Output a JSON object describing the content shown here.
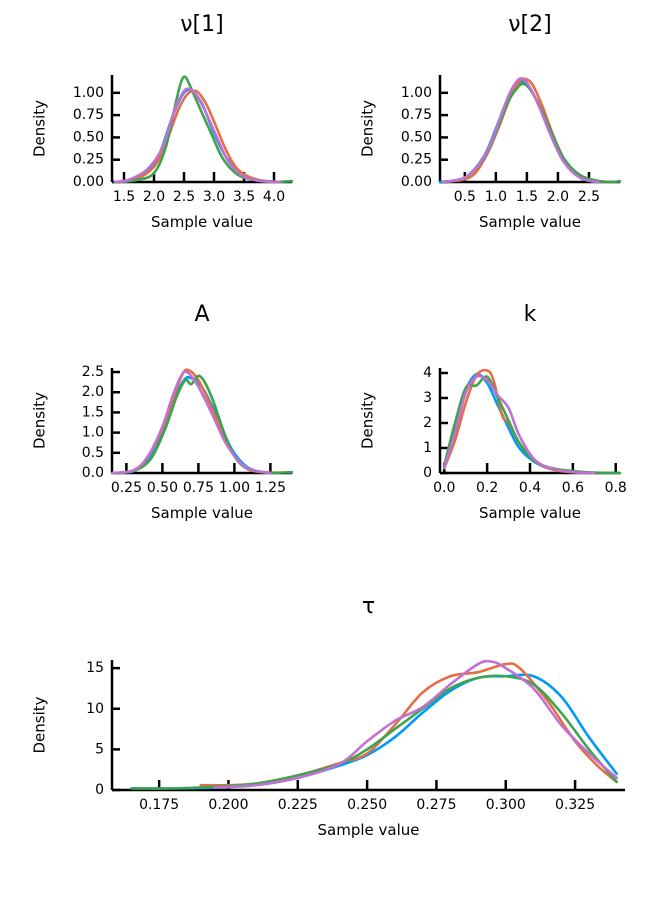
{
  "colors": {
    "chain1": "#009AFA",
    "chain2": "#E26F46",
    "chain3": "#3DA44E",
    "chain4": "#C271D2"
  },
  "chart_data": [
    {
      "type": "line",
      "title": "ν[1]",
      "xlabel": "Sample value",
      "ylabel": "Density",
      "xlim": [
        1.3,
        4.3
      ],
      "ylim": [
        0,
        1.2
      ],
      "xticks": [
        1.5,
        2.0,
        2.5,
        3.0,
        3.5,
        4.0
      ],
      "xtick_labels": [
        "1.5",
        "2.0",
        "2.5",
        "3.0",
        "3.5",
        "4.0"
      ],
      "yticks": [
        0,
        0.25,
        0.5,
        0.75,
        1.0
      ],
      "ytick_labels": [
        "0.00",
        "0.25",
        "0.50",
        "0.75",
        "1.00"
      ],
      "series": [
        {
          "color": "#009AFA",
          "x": [
            1.35,
            1.6,
            1.9,
            2.1,
            2.3,
            2.45,
            2.55,
            2.65,
            2.8,
            3.0,
            3.2,
            3.45,
            3.7,
            4.0
          ],
          "y": [
            0.0,
            0.02,
            0.12,
            0.33,
            0.72,
            0.95,
            1.03,
            1.01,
            0.88,
            0.55,
            0.28,
            0.1,
            0.03,
            0.0
          ]
        },
        {
          "color": "#E26F46",
          "x": [
            1.4,
            1.7,
            2.0,
            2.2,
            2.4,
            2.55,
            2.7,
            2.85,
            3.0,
            3.2,
            3.4,
            3.7,
            4.1
          ],
          "y": [
            0.0,
            0.03,
            0.17,
            0.44,
            0.8,
            0.98,
            1.02,
            0.9,
            0.68,
            0.36,
            0.14,
            0.03,
            0.0
          ]
        },
        {
          "color": "#3DA44E",
          "x": [
            1.35,
            1.7,
            2.0,
            2.2,
            2.35,
            2.45,
            2.52,
            2.6,
            2.75,
            2.95,
            3.15,
            3.4,
            3.7,
            4.0,
            4.3
          ],
          "y": [
            0.0,
            0.02,
            0.1,
            0.4,
            0.85,
            1.12,
            1.18,
            1.08,
            0.85,
            0.55,
            0.26,
            0.08,
            0.02,
            0.0,
            0.01
          ]
        },
        {
          "color": "#C271D2",
          "x": [
            1.35,
            1.6,
            1.9,
            2.15,
            2.35,
            2.5,
            2.6,
            2.7,
            2.85,
            3.05,
            3.25,
            3.5,
            3.8,
            4.1
          ],
          "y": [
            0.0,
            0.03,
            0.15,
            0.4,
            0.82,
            1.02,
            1.04,
            0.98,
            0.8,
            0.5,
            0.22,
            0.06,
            0.01,
            0.0
          ]
        }
      ]
    },
    {
      "type": "line",
      "title": "ν[2]",
      "xlabel": "Sample value",
      "ylabel": "Density",
      "xlim": [
        0.1,
        3.0
      ],
      "ylim": [
        0,
        1.2
      ],
      "xticks": [
        0.5,
        1.0,
        1.5,
        2.0,
        2.5
      ],
      "xtick_labels": [
        "0.5",
        "1.0",
        "1.5",
        "2.0",
        "2.5"
      ],
      "yticks": [
        0,
        0.25,
        0.5,
        0.75,
        1.0
      ],
      "ytick_labels": [
        "0.00",
        "0.25",
        "0.50",
        "0.75",
        "1.00"
      ],
      "series": [
        {
          "color": "#009AFA",
          "x": [
            0.1,
            0.5,
            0.8,
            1.0,
            1.2,
            1.35,
            1.45,
            1.55,
            1.7,
            1.9,
            2.1,
            2.35,
            2.6
          ],
          "y": [
            0.0,
            0.05,
            0.28,
            0.6,
            0.95,
            1.1,
            1.12,
            1.05,
            0.85,
            0.5,
            0.22,
            0.05,
            0.0
          ]
        },
        {
          "color": "#E26F46",
          "x": [
            0.2,
            0.6,
            0.85,
            1.05,
            1.25,
            1.4,
            1.5,
            1.6,
            1.75,
            1.95,
            2.15,
            2.4,
            2.7
          ],
          "y": [
            0.0,
            0.06,
            0.3,
            0.62,
            0.98,
            1.14,
            1.15,
            1.08,
            0.85,
            0.48,
            0.2,
            0.04,
            0.0
          ]
        },
        {
          "color": "#3DA44E",
          "x": [
            0.15,
            0.5,
            0.8,
            1.0,
            1.2,
            1.35,
            1.45,
            1.55,
            1.7,
            1.9,
            2.1,
            2.35,
            2.6,
            2.85,
            3.0
          ],
          "y": [
            0.0,
            0.05,
            0.26,
            0.55,
            0.9,
            1.06,
            1.1,
            1.04,
            0.86,
            0.55,
            0.26,
            0.08,
            0.02,
            0.0,
            0.01
          ]
        },
        {
          "color": "#C271D2",
          "x": [
            0.15,
            0.5,
            0.8,
            1.0,
            1.2,
            1.35,
            1.45,
            1.55,
            1.7,
            1.9,
            2.1,
            2.35,
            2.65
          ],
          "y": [
            0.0,
            0.05,
            0.27,
            0.58,
            0.96,
            1.14,
            1.15,
            1.06,
            0.84,
            0.5,
            0.22,
            0.05,
            0.0
          ]
        }
      ]
    },
    {
      "type": "line",
      "title": "A",
      "xlabel": "Sample value",
      "ylabel": "Density",
      "xlim": [
        0.15,
        1.4
      ],
      "ylim": [
        0,
        2.6
      ],
      "xticks": [
        0.25,
        0.5,
        0.75,
        1.0,
        1.25
      ],
      "xtick_labels": [
        "0.25",
        "0.50",
        "0.75",
        "1.00",
        "1.25"
      ],
      "yticks": [
        0,
        0.5,
        1.0,
        1.5,
        2.0,
        2.5
      ],
      "ytick_labels": [
        "0.0",
        "0.5",
        "1.0",
        "1.5",
        "2.0",
        "2.5"
      ],
      "series": [
        {
          "color": "#009AFA",
          "x": [
            0.15,
            0.3,
            0.4,
            0.5,
            0.58,
            0.65,
            0.7,
            0.78,
            0.88,
            0.98,
            1.1,
            1.25
          ],
          "y": [
            0.0,
            0.05,
            0.35,
            1.05,
            1.8,
            2.3,
            2.35,
            2.1,
            1.4,
            0.6,
            0.12,
            0.0
          ]
        },
        {
          "color": "#E26F46",
          "x": [
            0.15,
            0.3,
            0.4,
            0.5,
            0.58,
            0.64,
            0.68,
            0.75,
            0.85,
            0.96,
            1.08,
            1.25
          ],
          "y": [
            0.0,
            0.06,
            0.4,
            1.1,
            1.9,
            2.45,
            2.55,
            2.3,
            1.55,
            0.65,
            0.12,
            0.0
          ]
        },
        {
          "color": "#3DA44E",
          "x": [
            0.15,
            0.3,
            0.42,
            0.52,
            0.6,
            0.66,
            0.7,
            0.76,
            0.84,
            0.95,
            1.05,
            1.2,
            1.4
          ],
          "y": [
            0.0,
            0.05,
            0.35,
            1.1,
            1.9,
            2.3,
            2.2,
            2.4,
            1.9,
            0.8,
            0.2,
            0.02,
            0.02
          ]
        },
        {
          "color": "#C271D2",
          "x": [
            0.15,
            0.3,
            0.4,
            0.5,
            0.57,
            0.63,
            0.67,
            0.74,
            0.84,
            0.95,
            1.08,
            1.25
          ],
          "y": [
            0.0,
            0.07,
            0.42,
            1.15,
            1.9,
            2.4,
            2.5,
            2.2,
            1.5,
            0.68,
            0.14,
            0.0
          ]
        }
      ]
    },
    {
      "type": "line",
      "title": "k",
      "xlabel": "Sample value",
      "ylabel": "Density",
      "xlim": [
        -0.02,
        0.82
      ],
      "ylim": [
        0,
        4.2
      ],
      "xticks": [
        0.0,
        0.2,
        0.4,
        0.6,
        0.8
      ],
      "xtick_labels": [
        "0.0",
        "0.2",
        "0.4",
        "0.6",
        "0.8"
      ],
      "yticks": [
        0,
        1,
        2,
        3,
        4
      ],
      "ytick_labels": [
        "0",
        "1",
        "2",
        "3",
        "4"
      ],
      "series": [
        {
          "color": "#009AFA",
          "x": [
            0.0,
            0.05,
            0.1,
            0.15,
            0.2,
            0.25,
            0.3,
            0.35,
            0.42,
            0.5,
            0.6,
            0.7
          ],
          "y": [
            0.2,
            1.8,
            3.3,
            3.95,
            3.6,
            2.7,
            1.8,
            1.0,
            0.45,
            0.15,
            0.03,
            0.0
          ]
        },
        {
          "color": "#E26F46",
          "x": [
            0.0,
            0.05,
            0.1,
            0.15,
            0.2,
            0.23,
            0.27,
            0.3,
            0.35,
            0.42,
            0.5,
            0.6,
            0.7
          ],
          "y": [
            0.2,
            1.3,
            2.8,
            3.9,
            4.1,
            3.7,
            2.3,
            2.0,
            1.2,
            0.5,
            0.15,
            0.03,
            0.0
          ]
        },
        {
          "color": "#3DA44E",
          "x": [
            0.0,
            0.05,
            0.1,
            0.15,
            0.2,
            0.25,
            0.3,
            0.35,
            0.42,
            0.5,
            0.6,
            0.7,
            0.82
          ],
          "y": [
            0.3,
            2.0,
            3.4,
            3.5,
            3.85,
            3.0,
            2.1,
            1.2,
            0.5,
            0.2,
            0.08,
            0.02,
            0.0
          ]
        },
        {
          "color": "#C271D2",
          "x": [
            0.0,
            0.05,
            0.1,
            0.15,
            0.2,
            0.25,
            0.3,
            0.35,
            0.42,
            0.5,
            0.6,
            0.7
          ],
          "y": [
            0.2,
            1.6,
            3.2,
            3.85,
            3.7,
            3.1,
            2.6,
            1.5,
            0.55,
            0.18,
            0.04,
            0.0
          ]
        }
      ]
    },
    {
      "type": "line",
      "title": "τ",
      "xlabel": "Sample value",
      "ylabel": "Density",
      "xlim": [
        0.158,
        0.343
      ],
      "ylim": [
        0,
        16
      ],
      "xticks": [
        0.175,
        0.2,
        0.225,
        0.25,
        0.275,
        0.3,
        0.325
      ],
      "xtick_labels": [
        "0.175",
        "0.200",
        "0.225",
        "0.250",
        "0.275",
        "0.300",
        "0.325"
      ],
      "yticks": [
        0,
        5,
        10,
        15
      ],
      "ytick_labels": [
        "0",
        "5",
        "10",
        "15"
      ],
      "series": [
        {
          "color": "#009AFA",
          "x": [
            0.165,
            0.18,
            0.195,
            0.21,
            0.225,
            0.24,
            0.25,
            0.26,
            0.27,
            0.28,
            0.29,
            0.3,
            0.31,
            0.32,
            0.33,
            0.34
          ],
          "y": [
            0.2,
            0.2,
            0.3,
            0.6,
            1.5,
            3.0,
            4.3,
            6.5,
            9.5,
            12.2,
            13.8,
            14.0,
            14.0,
            11.5,
            6.5,
            2.0
          ]
        },
        {
          "color": "#E26F46",
          "x": [
            0.19,
            0.2,
            0.21,
            0.225,
            0.24,
            0.25,
            0.26,
            0.27,
            0.28,
            0.29,
            0.3,
            0.305,
            0.315,
            0.325,
            0.333,
            0.34
          ],
          "y": [
            0.6,
            0.6,
            0.8,
            1.8,
            3.3,
            4.5,
            8.0,
            12.0,
            14.0,
            14.5,
            15.5,
            15.0,
            11.0,
            6.0,
            3.0,
            1.0
          ]
        },
        {
          "color": "#3DA44E",
          "x": [
            0.165,
            0.18,
            0.195,
            0.21,
            0.225,
            0.24,
            0.25,
            0.26,
            0.27,
            0.28,
            0.29,
            0.3,
            0.31,
            0.32,
            0.33,
            0.34
          ],
          "y": [
            0.2,
            0.2,
            0.4,
            0.8,
            1.8,
            3.2,
            5.0,
            7.5,
            10.0,
            12.5,
            13.8,
            14.0,
            13.0,
            9.5,
            5.0,
            1.0
          ]
        },
        {
          "color": "#C271D2",
          "x": [
            0.195,
            0.21,
            0.225,
            0.24,
            0.25,
            0.26,
            0.27,
            0.28,
            0.29,
            0.295,
            0.3,
            0.31,
            0.32,
            0.33,
            0.34
          ],
          "y": [
            0.3,
            0.6,
            1.5,
            3.2,
            6.0,
            8.5,
            10.2,
            13.0,
            15.5,
            15.8,
            15.0,
            12.5,
            8.0,
            4.5,
            1.5
          ]
        }
      ]
    }
  ]
}
